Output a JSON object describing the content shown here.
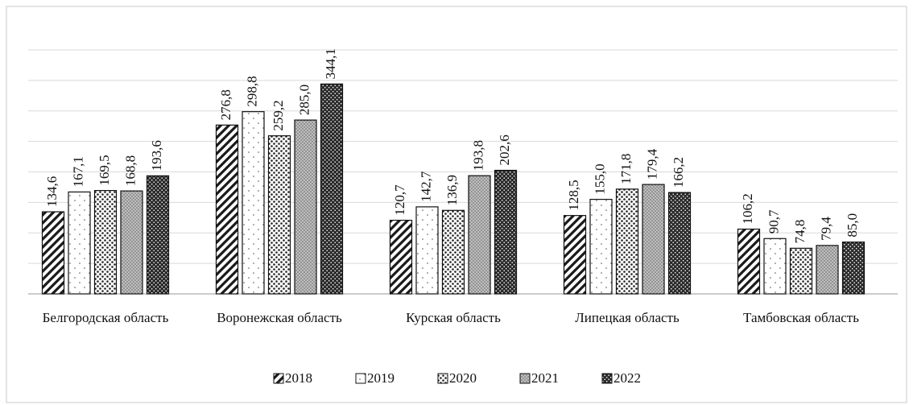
{
  "chart_data": {
    "type": "bar",
    "categories": [
      "Белгородская область",
      "Воронежская область",
      "Курская область",
      "Липецкая область",
      "Тамбовская область"
    ],
    "series": [
      {
        "name": "2018",
        "color": "#1a1a1a",
        "values": [
          134.6,
          276.8,
          120.7,
          128.5,
          106.2
        ],
        "value_labels": [
          "134,6",
          "276,8",
          "120,7",
          "128,5",
          "106,2"
        ]
      },
      {
        "name": "2019",
        "color": "#555555",
        "values": [
          167.1,
          298.8,
          142.7,
          155.0,
          90.7
        ],
        "value_labels": [
          "167,1",
          "298,8",
          "142,7",
          "155,0",
          "90,7"
        ]
      },
      {
        "name": "2020",
        "color": "#222222",
        "values": [
          169.5,
          259.2,
          136.9,
          171.8,
          74.8
        ],
        "value_labels": [
          "169,5",
          "259,2",
          "136,9",
          "171,8",
          "74,8"
        ]
      },
      {
        "name": "2021",
        "color": "#8a8a8a",
        "values": [
          168.8,
          285.0,
          193.8,
          179.4,
          79.4
        ],
        "value_labels": [
          "168,8",
          "285,0",
          "193,8",
          "179,4",
          "79,4"
        ]
      },
      {
        "name": "2022",
        "color": "#2b2b2b",
        "values": [
          193.6,
          344.1,
          202.6,
          166.2,
          85.0
        ],
        "value_labels": [
          "193,6",
          "344,1",
          "202,6",
          "166,2",
          "85,0"
        ]
      }
    ],
    "ylim": [
      0,
      400
    ],
    "yticks": [
      0,
      50,
      100,
      150,
      200,
      250,
      300,
      350,
      400
    ],
    "grid": true,
    "legend": "bottom"
  }
}
